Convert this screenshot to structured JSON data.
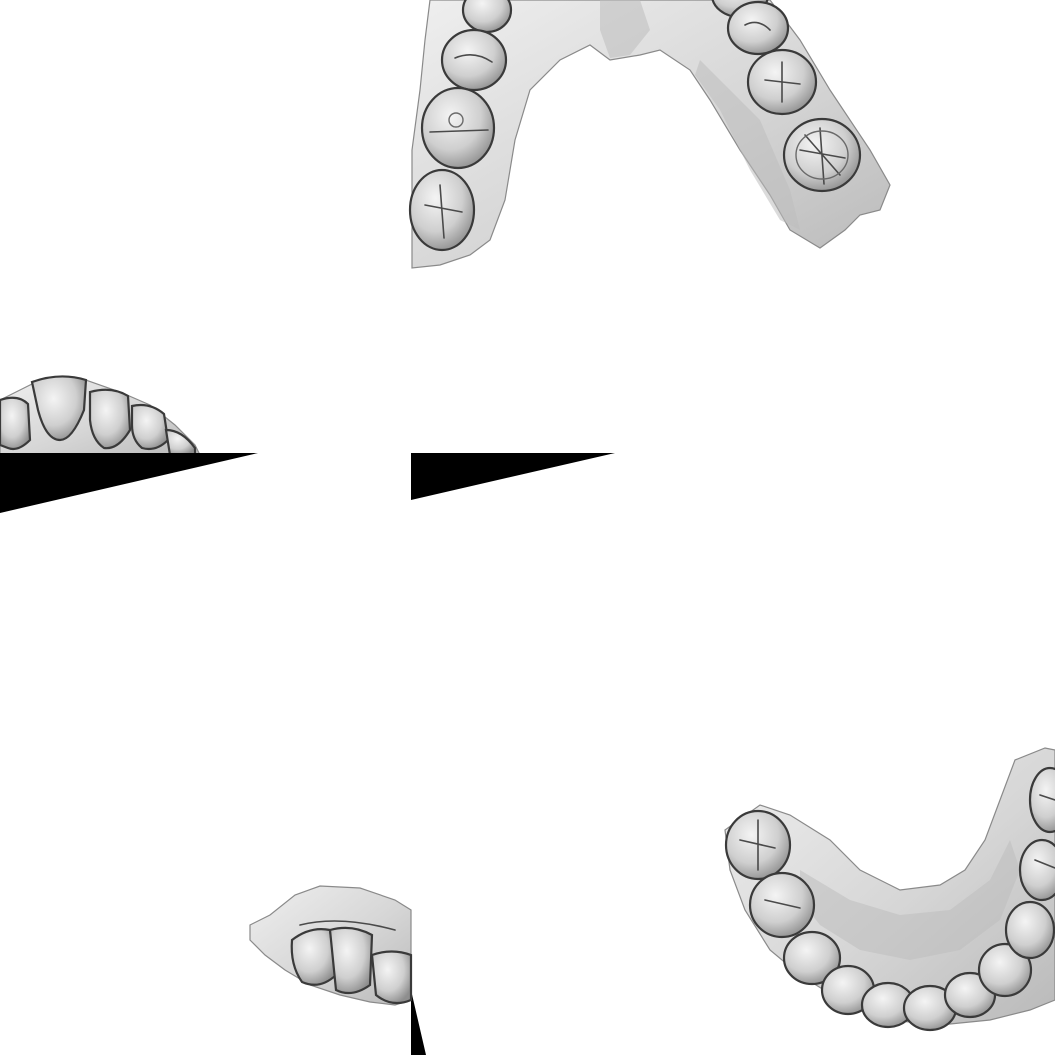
{
  "scene": {
    "background": "#ffffff",
    "tooth_color": "#d9d9d9",
    "gum_color": "#e2e2e2",
    "outline_color": "#3a3a3a",
    "wedge_color": "#000000"
  },
  "views": [
    {
      "id": "upper-arch-occlusal",
      "kind": "upper dental arch, occlusal view"
    },
    {
      "id": "anterior-teeth-fragment",
      "kind": "anterior teeth fragment"
    },
    {
      "id": "lower-left-fragment",
      "kind": "partial dental scan"
    },
    {
      "id": "lower-arch-occlusal",
      "kind": "lower dental arch, occlusal view"
    }
  ],
  "markers": [
    {
      "id": "left-wedge",
      "kind": "black triangle"
    },
    {
      "id": "center-wedge",
      "kind": "black triangle"
    },
    {
      "id": "bottom-wedge",
      "kind": "black triangle"
    }
  ]
}
